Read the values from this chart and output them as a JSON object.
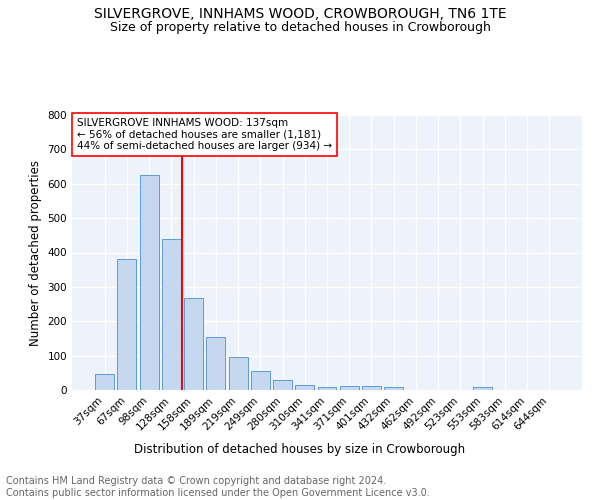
{
  "title": "SILVERGROVE, INNHAMS WOOD, CROWBOROUGH, TN6 1TE",
  "subtitle": "Size of property relative to detached houses in Crowborough",
  "xlabel": "Distribution of detached houses by size in Crowborough",
  "ylabel": "Number of detached properties",
  "footer_line1": "Contains HM Land Registry data © Crown copyright and database right 2024.",
  "footer_line2": "Contains public sector information licensed under the Open Government Licence v3.0.",
  "categories": [
    "37sqm",
    "67sqm",
    "98sqm",
    "128sqm",
    "158sqm",
    "189sqm",
    "219sqm",
    "249sqm",
    "280sqm",
    "310sqm",
    "341sqm",
    "371sqm",
    "401sqm",
    "432sqm",
    "462sqm",
    "492sqm",
    "523sqm",
    "553sqm",
    "583sqm",
    "614sqm",
    "644sqm"
  ],
  "values": [
    47,
    382,
    625,
    438,
    268,
    153,
    95,
    54,
    30,
    16,
    10,
    13,
    13,
    8,
    0,
    0,
    0,
    8,
    0,
    0,
    0
  ],
  "bar_color": "#c5d8f0",
  "bar_edge_color": "#5b9bd5",
  "vline_x": 3.5,
  "vline_color": "red",
  "annotation_text": "SILVERGROVE INNHAMS WOOD: 137sqm\n← 56% of detached houses are smaller (1,181)\n44% of semi-detached houses are larger (934) →",
  "annotation_box_edge": "red",
  "ylim": [
    0,
    800
  ],
  "yticks": [
    0,
    100,
    200,
    300,
    400,
    500,
    600,
    700,
    800
  ],
  "bg_color": "#eef2fa",
  "grid_color": "white",
  "title_fontsize": 10,
  "subtitle_fontsize": 9,
  "xlabel_fontsize": 8.5,
  "ylabel_fontsize": 8.5,
  "tick_fontsize": 7.5,
  "annotation_fontsize": 7.5,
  "footer_fontsize": 7
}
